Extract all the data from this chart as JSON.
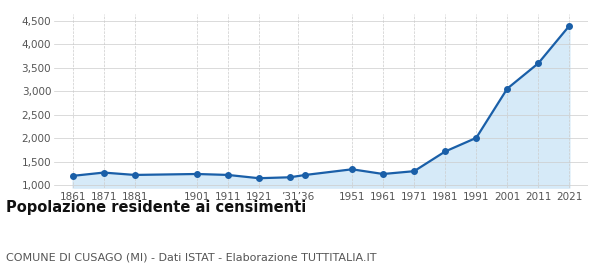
{
  "years": [
    1861,
    1871,
    1881,
    1901,
    1911,
    1921,
    1931,
    1936,
    1951,
    1961,
    1971,
    1981,
    1991,
    2001,
    2011,
    2021
  ],
  "population": [
    1200,
    1270,
    1220,
    1240,
    1220,
    1150,
    1170,
    1220,
    1340,
    1240,
    1300,
    1720,
    2010,
    3060,
    3600,
    4400
  ],
  "y_ticks": [
    1000,
    1500,
    2000,
    2500,
    3000,
    3500,
    4000,
    4500
  ],
  "ylim": [
    950,
    4650
  ],
  "xlim": [
    1855,
    2027
  ],
  "line_color": "#1a5fa8",
  "fill_color": "#d6eaf8",
  "marker_color": "#1a5fa8",
  "grid_color": "#cccccc",
  "bg_color": "#ffffff",
  "title": "Popolazione residente ai censimenti",
  "subtitle": "COMUNE DI CUSAGO (MI) - Dati ISTAT - Elaborazione TUTTITALIA.IT",
  "title_fontsize": 10.5,
  "subtitle_fontsize": 8.0,
  "tick_fontsize": 7.5,
  "ytick_fontsize": 7.5
}
